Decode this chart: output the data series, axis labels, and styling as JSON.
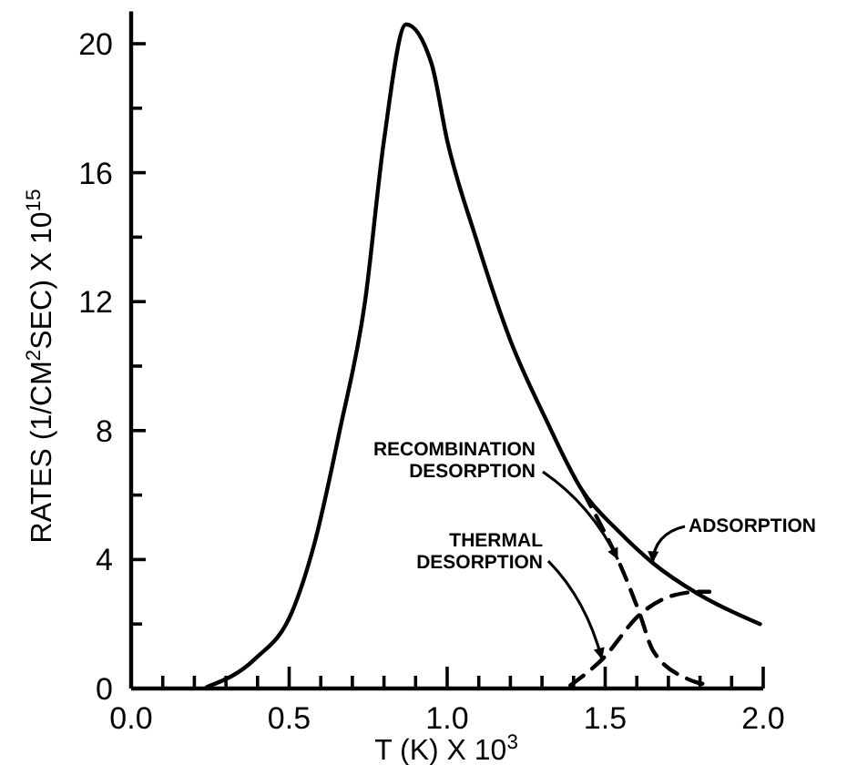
{
  "chart_data": {
    "type": "line",
    "xlabel": "T (K) X 10$^{3}$",
    "ylabel": "RATES (1/CM$^{2}$SEC) X 10$^{15}$",
    "xlim": [
      0,
      2
    ],
    "ylim": [
      0,
      21
    ],
    "xticks": [
      {
        "value": 0,
        "label": "0.0"
      },
      {
        "value": 0.1,
        "label": null
      },
      {
        "value": 0.2,
        "label": null
      },
      {
        "value": 0.3,
        "label": null
      },
      {
        "value": 0.4,
        "label": null
      },
      {
        "value": 0.5,
        "label": "0.5"
      },
      {
        "value": 0.6,
        "label": null
      },
      {
        "value": 0.7,
        "label": null
      },
      {
        "value": 0.8,
        "label": null
      },
      {
        "value": 0.9,
        "label": null
      },
      {
        "value": 1,
        "label": "1.0"
      },
      {
        "value": 1.1,
        "label": null
      },
      {
        "value": 1.2,
        "label": null
      },
      {
        "value": 1.3,
        "label": null
      },
      {
        "value": 1.4,
        "label": null
      },
      {
        "value": 1.5,
        "label": "1.5"
      },
      {
        "value": 1.6,
        "label": null
      },
      {
        "value": 1.7,
        "label": null
      },
      {
        "value": 1.8,
        "label": null
      },
      {
        "value": 1.9,
        "label": null
      },
      {
        "value": 2,
        "label": "2.0"
      }
    ],
    "yticks": [
      0,
      {
        "value": 2,
        "label": null
      },
      4,
      {
        "value": 6,
        "label": null
      },
      8,
      {
        "value": 10,
        "label": null
      },
      12,
      {
        "value": 14,
        "label": null
      },
      16,
      {
        "value": 18,
        "label": null
      },
      20
    ],
    "grid": false,
    "marker": "none",
    "series": [
      {
        "name": "ADSORPTION",
        "color": "#000000",
        "line_style": "solid",
        "x": [
          0.24,
          0.39,
          0.51,
          0.58,
          0.66,
          0.74,
          0.8,
          0.87,
          0.95,
          1.0,
          1.09,
          1.2,
          1.31,
          1.43,
          1.54,
          1.65,
          1.8,
          1.99
        ],
        "values": [
          0.05,
          0.9,
          2.4,
          4.5,
          8.0,
          12.0,
          17.0,
          20.6,
          19.4,
          17.0,
          14.0,
          10.8,
          8.4,
          6.1,
          4.9,
          3.9,
          2.9,
          2.0
        ]
      },
      {
        "name": "RECOMBINATION DESORPTION",
        "color": "#000000",
        "line_style": "dashed",
        "x": [
          1.43,
          1.49,
          1.54,
          1.61,
          1.65,
          1.76,
          1.84
        ],
        "values": [
          6.1,
          5.0,
          4.0,
          2.3,
          1.2,
          0.3,
          0.1
        ]
      },
      {
        "name": "THERMAL DESORPTION",
        "color": "#000000",
        "line_style": "dashed",
        "x": [
          1.39,
          1.49,
          1.61,
          1.72,
          1.8,
          1.83
        ],
        "values": [
          0.1,
          0.9,
          2.3,
          2.9,
          3.0,
          3.0
        ]
      }
    ]
  }
}
